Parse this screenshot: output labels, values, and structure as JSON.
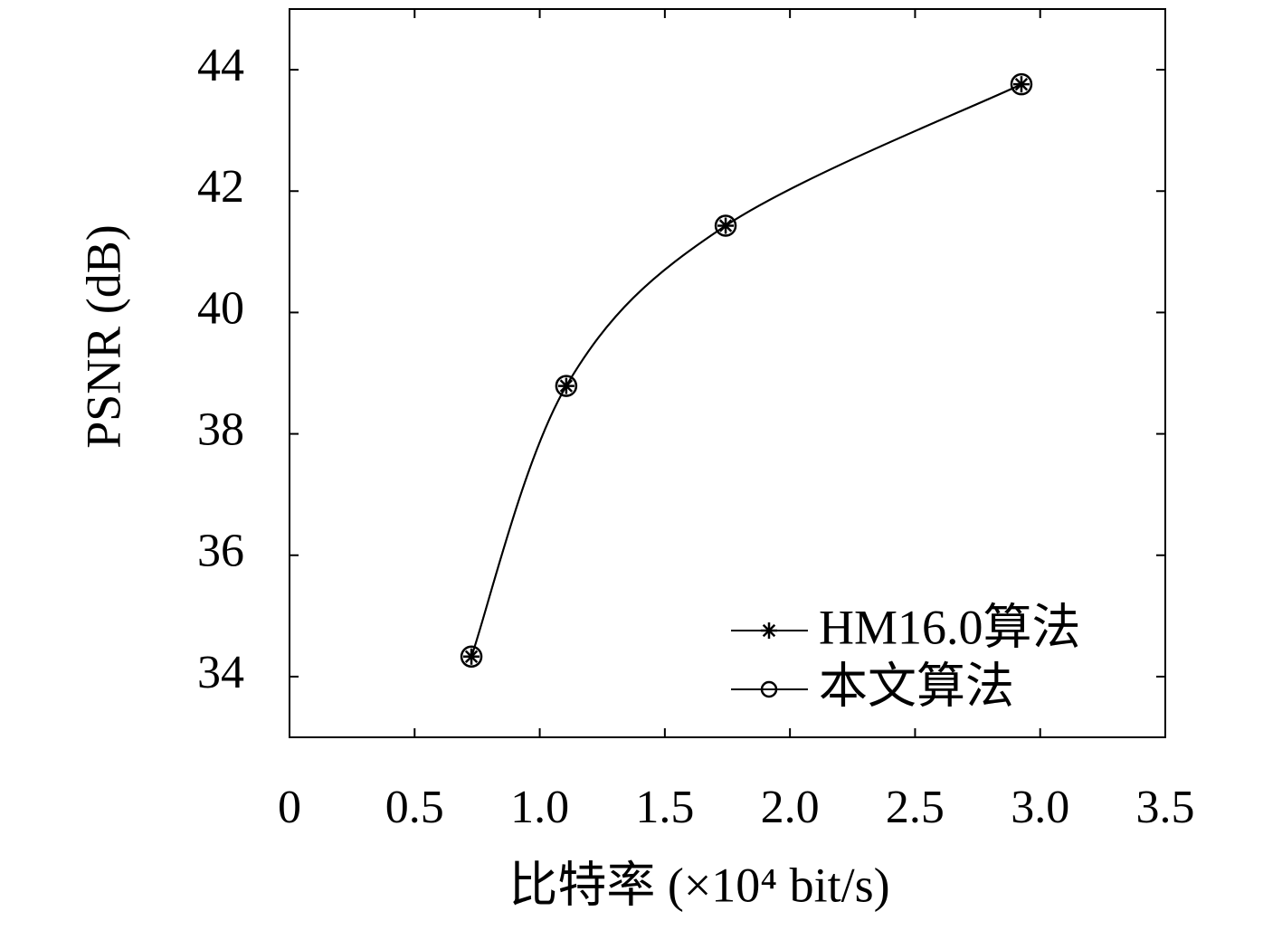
{
  "chart_data": {
    "type": "line",
    "xlabel": "比特率 (×10⁴ bit/s)",
    "ylabel": "PSNR (dB)",
    "x": [
      0.727,
      1.106,
      1.743,
      2.925
    ],
    "series": [
      {
        "name": "HM16.0算法",
        "color": "#000000",
        "marker": "star",
        "values": [
          34.33,
          38.79,
          41.43,
          43.76
        ]
      },
      {
        "name": "本文算法",
        "color": "#000000",
        "marker": "circle",
        "values": [
          34.33,
          38.79,
          41.43,
          43.76
        ]
      }
    ],
    "xlim": [
      0,
      3.5
    ],
    "xticks": [
      0,
      0.5,
      {
        "value": 1,
        "label": "1.0"
      },
      1.5,
      {
        "value": 2,
        "label": "2.0"
      },
      2.5,
      {
        "value": 3,
        "label": "3.0"
      },
      3.5
    ],
    "ylim": [
      33,
      45
    ],
    "yticks": [
      34,
      36,
      38,
      40,
      42,
      44
    ],
    "grid": false,
    "legend": "lower right"
  }
}
